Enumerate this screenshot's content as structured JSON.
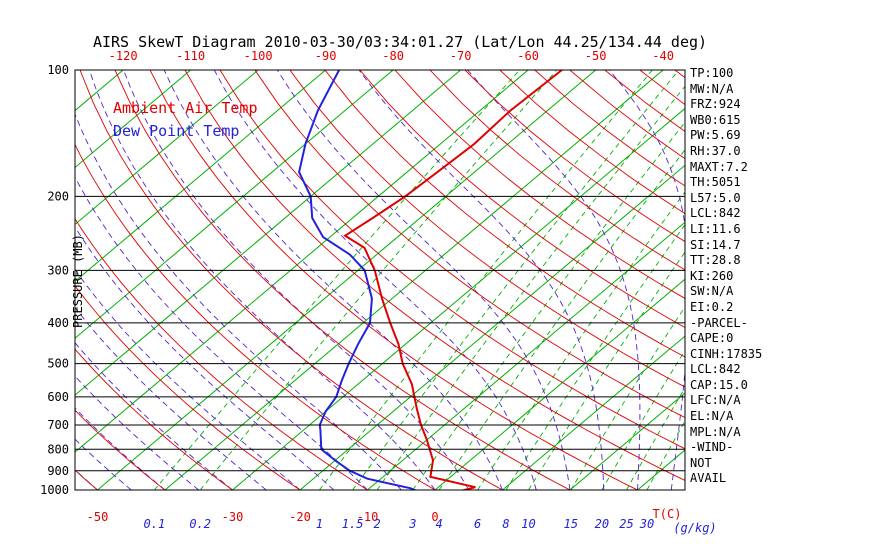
{
  "title": "AIRS SkewT Diagram 2010-03-30/03:34:01.27 (Lat/Lon 44.25/134.44 deg)",
  "legend": {
    "ambient_label": "Ambient Air Temp",
    "dewpoint_label": "Dew Point Temp"
  },
  "y_axis": {
    "label": "PRESSURE (MB)",
    "levels": [
      100,
      200,
      300,
      400,
      500,
      600,
      700,
      800,
      900,
      1000
    ]
  },
  "x_axis": {
    "top_labels": [
      -120,
      -110,
      -100,
      -90,
      -80,
      -70,
      -60,
      -50,
      -40
    ],
    "bottom_temp_labels": [
      -50,
      -30,
      -20,
      -10,
      0
    ],
    "temp_unit_label": "T(C)",
    "mixing_unit_label": "(g/kg)"
  },
  "stats_panel": {
    "lines": [
      "TP:100",
      "MW:N/A",
      "FRZ:924",
      "WB0:615",
      "PW:5.69",
      "RH:37.0",
      "MAXT:7.2",
      "TH:5051",
      "L57:5.0",
      "LCL:842",
      "LI:11.6",
      "SI:14.7",
      "TT:28.8",
      "KI:260",
      "SW:N/A",
      "EI:0.2",
      "-PARCEL-",
      "CAPE:0",
      "CINH:17835",
      "LCL:842",
      "CAP:15.0",
      "LFC:N/A",
      "EL:N/A",
      "MPL:N/A",
      "-WIND-",
      "NOT",
      "AVAIL"
    ]
  },
  "colors": {
    "temp_line": "#e00000",
    "dewpoint_line": "#2222dd",
    "isotherm": "#00b000",
    "dry_adiabat": "#e00000",
    "moist_adiabat": "#5522cc",
    "mixing_ratio": "#00b000",
    "pressure_line": "#000000",
    "label_red": "#e00000",
    "label_blue": "#2222dd",
    "text": "#000000"
  },
  "chart_data": {
    "type": "line",
    "title": "AIRS SkewT Diagram 2010-03-30/03:34:01.27 (Lat/Lon 44.25/134.44 deg)",
    "x_label": "Temperature (C)",
    "y_label": "PRESSURE (MB)",
    "y_scale": "log",
    "y_range": [
      100,
      1000
    ],
    "grid": "skew-t log-p",
    "legend_position": "top-left",
    "isotherms": {
      "min": -130,
      "max": 40,
      "step": 10
    },
    "dry_adiabats": {
      "min": -50,
      "max": 180,
      "step": 10
    },
    "moist_adiabats": {
      "min": -60,
      "max": 40,
      "step": 5
    },
    "mixing_ratio_lines": [
      0.1,
      0.2,
      1,
      1.5,
      2,
      3,
      4,
      6,
      8,
      10,
      15,
      20,
      25,
      30
    ],
    "series": [
      {
        "name": "Ambient Air Temp",
        "color_key": "temp_line",
        "data_name": "ambient-temp-line",
        "points_tp": [
          [
            4.0,
            1005
          ],
          [
            5.5,
            985
          ],
          [
            -3.0,
            930
          ],
          [
            -5.5,
            850
          ],
          [
            -10,
            760
          ],
          [
            -13.5,
            700
          ],
          [
            -17,
            640
          ],
          [
            -22,
            560
          ],
          [
            -27,
            500
          ],
          [
            -31,
            450
          ],
          [
            -36,
            400
          ],
          [
            -41.5,
            350
          ],
          [
            -47.5,
            300
          ],
          [
            -53,
            265
          ],
          [
            -58,
            248
          ],
          [
            -57,
            225
          ],
          [
            -56,
            200
          ],
          [
            -55.5,
            175
          ],
          [
            -55,
            150
          ],
          [
            -55.5,
            125
          ],
          [
            -55,
            100
          ]
        ]
      },
      {
        "name": "Dew Point Temp",
        "color_key": "dewpoint_line",
        "data_name": "dewpoint-line",
        "points_tp": [
          [
            -2.5,
            1005
          ],
          [
            -4,
            990
          ],
          [
            -12,
            940
          ],
          [
            -16,
            900
          ],
          [
            -20,
            850
          ],
          [
            -24,
            800
          ],
          [
            -27.5,
            720
          ],
          [
            -28.5,
            700
          ],
          [
            -30,
            650
          ],
          [
            -31,
            600
          ],
          [
            -33,
            550
          ],
          [
            -35,
            500
          ],
          [
            -37,
            450
          ],
          [
            -39,
            400
          ],
          [
            -43,
            350
          ],
          [
            -49,
            300
          ],
          [
            -54,
            275
          ],
          [
            -61,
            250
          ],
          [
            -66,
            225
          ],
          [
            -70,
            200
          ],
          [
            -76,
            175
          ],
          [
            -80,
            150
          ],
          [
            -84,
            125
          ],
          [
            -88,
            100
          ]
        ]
      }
    ]
  }
}
